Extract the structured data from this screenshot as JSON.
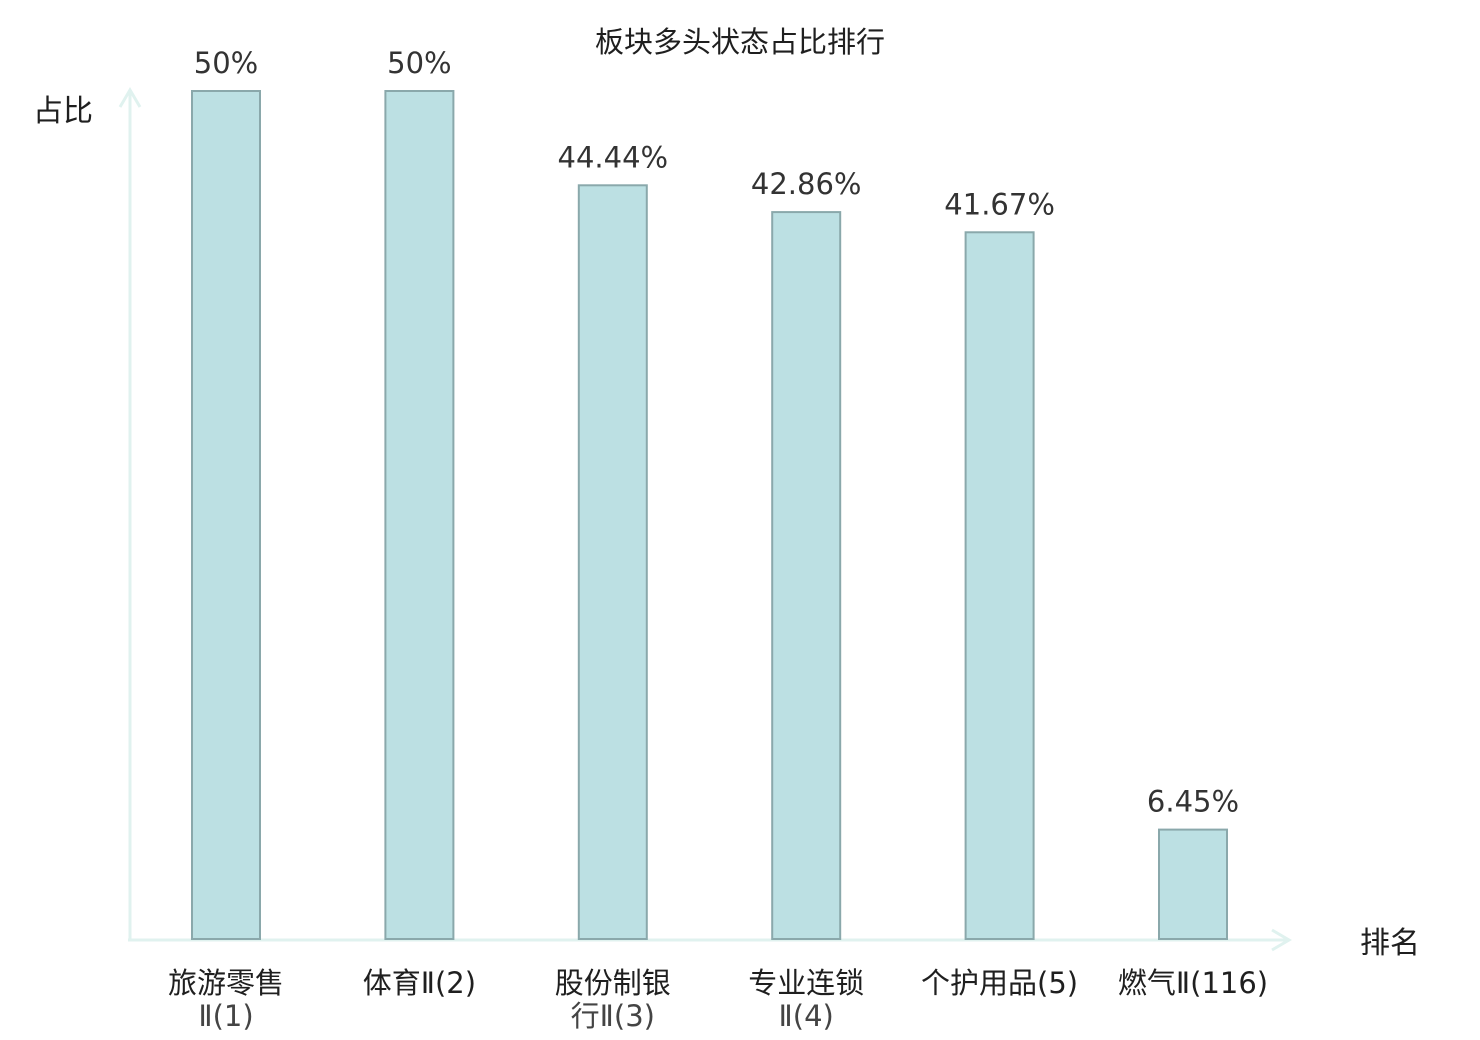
{
  "chart_data": {
    "type": "bar",
    "title": "板块多头状态占比排行",
    "xlabel": "排名",
    "ylabel": "占比",
    "categories": [
      [
        "旅游零售",
        "Ⅱ(1)"
      ],
      [
        "体育Ⅱ(2)"
      ],
      [
        "股份制银",
        "行Ⅱ(3)"
      ],
      [
        "专业连锁",
        "Ⅱ(4)"
      ],
      [
        "个护用品(5)"
      ],
      [
        "燃气Ⅱ(116)"
      ]
    ],
    "values": [
      50,
      50,
      44.44,
      42.86,
      41.67,
      6.45
    ],
    "value_labels": [
      "50%",
      "50%",
      "44.44%",
      "42.86%",
      "41.67%",
      "6.45%"
    ],
    "highlight_index": 5,
    "ylim": [
      0,
      50
    ],
    "grid": false,
    "legend": "none",
    "colors": {
      "bar_fill": "#bce0e3",
      "bar_stroke": "#8aa8ab",
      "axis": "#e0f2ef",
      "highlight_text": "#e02020"
    }
  }
}
